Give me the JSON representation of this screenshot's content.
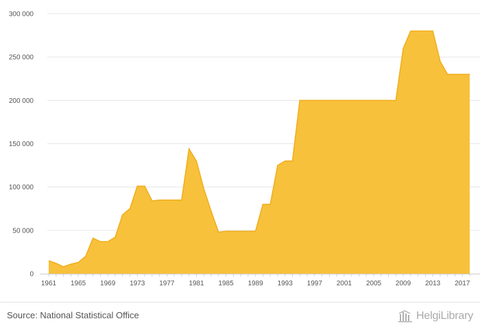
{
  "chart_data": {
    "type": "area",
    "title": "",
    "xlabel": "",
    "ylabel": "",
    "x": [
      1961,
      1962,
      1963,
      1964,
      1965,
      1966,
      1967,
      1968,
      1969,
      1970,
      1971,
      1972,
      1973,
      1974,
      1975,
      1976,
      1977,
      1978,
      1979,
      1980,
      1981,
      1982,
      1983,
      1984,
      1985,
      1986,
      1987,
      1988,
      1989,
      1990,
      1991,
      1992,
      1993,
      1994,
      1995,
      1996,
      1997,
      1998,
      1999,
      2000,
      2001,
      2002,
      2003,
      2004,
      2005,
      2006,
      2007,
      2008,
      2009,
      2010,
      2011,
      2012,
      2013,
      2014,
      2015,
      2016,
      2017,
      2018
    ],
    "series": [
      {
        "values": [
          15000,
          12000,
          8000,
          11000,
          13000,
          20000,
          41000,
          37000,
          37000,
          42000,
          68000,
          75000,
          101000,
          101000,
          84000,
          85000,
          85000,
          85000,
          85000,
          144000,
          130000,
          98000,
          72000,
          48000,
          49000,
          49000,
          49000,
          49000,
          49000,
          80000,
          80000,
          125000,
          130000,
          130000,
          200000,
          200000,
          200000,
          200000,
          200000,
          200000,
          200000,
          200000,
          200000,
          200000,
          200000,
          200000,
          200000,
          200000,
          260000,
          280000,
          280000,
          280000,
          280000,
          245000,
          230000,
          230000,
          230000,
          230000
        ]
      }
    ],
    "xticks": [
      "1961",
      "1965",
      "1969",
      "1973",
      "1977",
      "1981",
      "1985",
      "1989",
      "1993",
      "1997",
      "2001",
      "2005",
      "2009",
      "2013",
      "2017"
    ],
    "yticks": [
      {
        "value": 0,
        "label": "0"
      },
      {
        "value": 50000,
        "label": "50 000"
      },
      {
        "value": 100000,
        "label": "100 000"
      },
      {
        "value": 150000,
        "label": "150 000"
      },
      {
        "value": 200000,
        "label": "200 000"
      },
      {
        "value": 250000,
        "label": "250 000"
      },
      {
        "value": 300000,
        "label": "300 000"
      }
    ],
    "xlim": [
      1961,
      2018
    ],
    "ylim": [
      0,
      300000
    ],
    "grid": true,
    "colors": {
      "fill": "#f7c13c",
      "stroke": "#f0ad1a",
      "grid": "#e6e6e6",
      "axis": "#cccccc"
    }
  },
  "footer": {
    "source": "Source: National Statistical Office",
    "brand": "HelgiLibrary",
    "brand_icon": "helgi-library-logo-icon"
  }
}
